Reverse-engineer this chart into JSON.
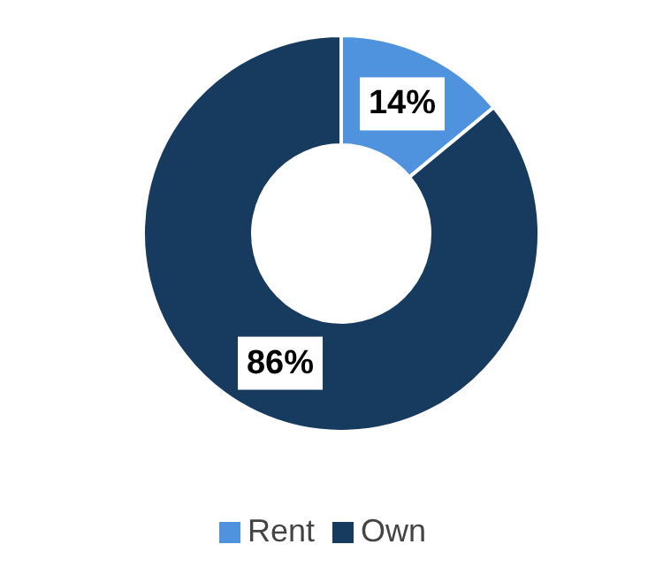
{
  "chart_data": {
    "type": "donut",
    "categories": [
      "Rent",
      "Own"
    ],
    "values": [
      14,
      86
    ],
    "colors": [
      "#4f93de",
      "#173a5f"
    ],
    "value_labels": [
      "14%",
      "86%"
    ],
    "legend": "bottom"
  }
}
